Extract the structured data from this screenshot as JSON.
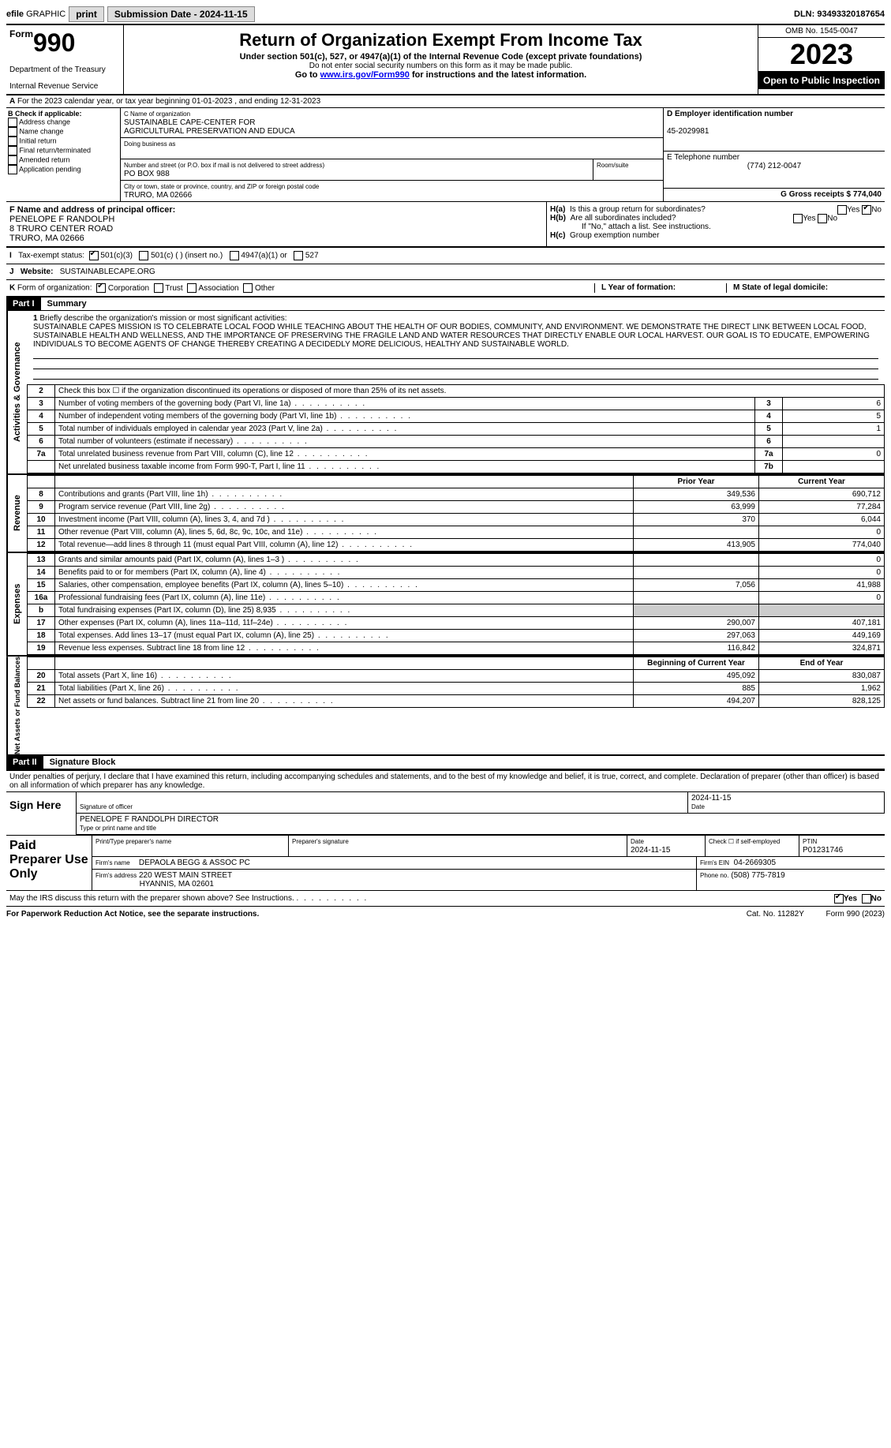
{
  "topbar": {
    "efile_prefix": "efile",
    "efile_suffix": "GRAPHIC",
    "print_btn": "print",
    "submission_label": "Submission Date - 2024-11-15",
    "dln": "DLN: 93493320187654"
  },
  "header": {
    "form_prefix": "Form",
    "form_num": "990",
    "dept1": "Department of the Treasury",
    "dept2": "Internal Revenue Service",
    "title": "Return of Organization Exempt From Income Tax",
    "sub1": "Under section 501(c), 527, or 4947(a)(1) of the Internal Revenue Code (except private foundations)",
    "sub2": "Do not enter social security numbers on this form as it may be made public.",
    "goto_prefix": "Go to ",
    "goto_link": "www.irs.gov/Form990",
    "goto_suffix": " for instructions and the latest information.",
    "omb": "OMB No. 1545-0047",
    "year": "2023",
    "open": "Open to Public Inspection"
  },
  "sec_a": "For the 2023 calendar year, or tax year beginning 01-01-2023   , and ending 12-31-2023",
  "col_b": {
    "title": "B Check if applicable:",
    "items": [
      "Address change",
      "Name change",
      "Initial return",
      "Final return/terminated",
      "Amended return",
      "Application pending"
    ]
  },
  "col_c": {
    "name_label": "C Name of organization",
    "name1": "SUSTAINABLE CAPE-CENTER FOR",
    "name2": "AGRICULTURAL PRESERVATION AND EDUCA",
    "dba_label": "Doing business as",
    "street_label": "Number and street (or P.O. box if mail is not delivered to street address)",
    "room_label": "Room/suite",
    "street": "PO BOX 988",
    "city_label": "City or town, state or province, country, and ZIP or foreign postal code",
    "city": "TRURO, MA  02666"
  },
  "col_d": {
    "ein_label": "D Employer identification number",
    "ein": "45-2029981",
    "phone_label": "E Telephone number",
    "phone": "(774) 212-0047",
    "gross_label": "G Gross receipts $ 774,040"
  },
  "block_f": {
    "f_label": "F Name and address of principal officer:",
    "name": "PENELOPE F RANDOLPH",
    "addr1": "8 TRURO CENTER ROAD",
    "addr2": "TRURO, MA  02666"
  },
  "block_h": {
    "ha_label": "H(a)",
    "ha_text": "Is this a group return for subordinates?",
    "hb_label": "H(b)",
    "hb_text": "Are all subordinates included?",
    "hb_note": "If \"No,\" attach a list. See instructions.",
    "hc_label": "H(c)",
    "hc_text": "Group exemption number",
    "yes": "Yes",
    "no": "No"
  },
  "row_i": {
    "label": "I",
    "text": "Tax-exempt status:",
    "opt1": "501(c)(3)",
    "opt2": "501(c) (  ) (insert no.)",
    "opt3": "4947(a)(1) or",
    "opt4": "527"
  },
  "row_j": {
    "label": "J",
    "text": "Website:",
    "val": "SUSTAINABLECAPE.ORG"
  },
  "row_k": {
    "label": "K",
    "text": "Form of organization:",
    "opts": [
      "Corporation",
      "Trust",
      "Association",
      "Other"
    ],
    "l_label": "L Year of formation:",
    "m_label": "M State of legal domicile:"
  },
  "part1": {
    "header": "Part I",
    "title": "Summary"
  },
  "sections": {
    "ag": "Activities & Governance",
    "rev": "Revenue",
    "exp": "Expenses",
    "na": "Net Assets or Fund Balances"
  },
  "mission": {
    "label": "1",
    "prompt": "Briefly describe the organization's mission or most significant activities:",
    "text": "SUSTAINABLE CAPES MISSION IS TO CELEBRATE LOCAL FOOD WHILE TEACHING ABOUT THE HEALTH OF OUR BODIES, COMMUNITY, AND ENVIRONMENT. WE DEMONSTRATE THE DIRECT LINK BETWEEN LOCAL FOOD, SUSTAINABLE HEALTH AND WELLNESS, AND THE IMPORTANCE OF PRESERVING THE FRAGILE LAND AND WATER RESOURCES THAT DIRECTLY ENABLE OUR LOCAL HARVEST. OUR GOAL IS TO EDUCATE, EMPOWERING INDIVIDUALS TO BECOME AGENTS OF CHANGE THEREBY CREATING A DECIDEDLY MORE DELICIOUS, HEALTHY AND SUSTAINABLE WORLD."
  },
  "lines_ag": [
    {
      "n": "2",
      "d": "Check this box ☐ if the organization discontinued its operations or disposed of more than 25% of its net assets.",
      "box": "",
      "v": ""
    },
    {
      "n": "3",
      "d": "Number of voting members of the governing body (Part VI, line 1a)",
      "box": "3",
      "v": "6"
    },
    {
      "n": "4",
      "d": "Number of independent voting members of the governing body (Part VI, line 1b)",
      "box": "4",
      "v": "5"
    },
    {
      "n": "5",
      "d": "Total number of individuals employed in calendar year 2023 (Part V, line 2a)",
      "box": "5",
      "v": "1"
    },
    {
      "n": "6",
      "d": "Total number of volunteers (estimate if necessary)",
      "box": "6",
      "v": ""
    },
    {
      "n": "7a",
      "d": "Total unrelated business revenue from Part VIII, column (C), line 12",
      "box": "7a",
      "v": "0"
    },
    {
      "n": "",
      "d": "Net unrelated business taxable income from Form 990-T, Part I, line 11",
      "box": "7b",
      "v": ""
    }
  ],
  "py_cy_header": {
    "py": "Prior Year",
    "cy": "Current Year"
  },
  "lines_rev": [
    {
      "n": "8",
      "d": "Contributions and grants (Part VIII, line 1h)",
      "py": "349,536",
      "cy": "690,712"
    },
    {
      "n": "9",
      "d": "Program service revenue (Part VIII, line 2g)",
      "py": "63,999",
      "cy": "77,284"
    },
    {
      "n": "10",
      "d": "Investment income (Part VIII, column (A), lines 3, 4, and 7d )",
      "py": "370",
      "cy": "6,044"
    },
    {
      "n": "11",
      "d": "Other revenue (Part VIII, column (A), lines 5, 6d, 8c, 9c, 10c, and 11e)",
      "py": "",
      "cy": "0"
    },
    {
      "n": "12",
      "d": "Total revenue—add lines 8 through 11 (must equal Part VIII, column (A), line 12)",
      "py": "413,905",
      "cy": "774,040"
    }
  ],
  "lines_exp": [
    {
      "n": "13",
      "d": "Grants and similar amounts paid (Part IX, column (A), lines 1–3 )",
      "py": "",
      "cy": "0"
    },
    {
      "n": "14",
      "d": "Benefits paid to or for members (Part IX, column (A), line 4)",
      "py": "",
      "cy": "0"
    },
    {
      "n": "15",
      "d": "Salaries, other compensation, employee benefits (Part IX, column (A), lines 5–10)",
      "py": "7,056",
      "cy": "41,988"
    },
    {
      "n": "16a",
      "d": "Professional fundraising fees (Part IX, column (A), line 11e)",
      "py": "",
      "cy": "0"
    },
    {
      "n": "b",
      "d": "Total fundraising expenses (Part IX, column (D), line 25) 8,935",
      "py": "grey",
      "cy": "grey"
    },
    {
      "n": "17",
      "d": "Other expenses (Part IX, column (A), lines 11a–11d, 11f–24e)",
      "py": "290,007",
      "cy": "407,181"
    },
    {
      "n": "18",
      "d": "Total expenses. Add lines 13–17 (must equal Part IX, column (A), line 25)",
      "py": "297,063",
      "cy": "449,169"
    },
    {
      "n": "19",
      "d": "Revenue less expenses. Subtract line 18 from line 12",
      "py": "116,842",
      "cy": "324,871"
    }
  ],
  "na_header": {
    "py": "Beginning of Current Year",
    "cy": "End of Year"
  },
  "lines_na": [
    {
      "n": "20",
      "d": "Total assets (Part X, line 16)",
      "py": "495,092",
      "cy": "830,087"
    },
    {
      "n": "21",
      "d": "Total liabilities (Part X, line 26)",
      "py": "885",
      "cy": "1,962"
    },
    {
      "n": "22",
      "d": "Net assets or fund balances. Subtract line 21 from line 20",
      "py": "494,207",
      "cy": "828,125"
    }
  ],
  "part2": {
    "header": "Part II",
    "title": "Signature Block",
    "declaration": "Under penalties of perjury, I declare that I have examined this return, including accompanying schedules and statements, and to the best of my knowledge and belief, it is true, correct, and complete. Declaration of preparer (other than officer) is based on all information of which preparer has any knowledge."
  },
  "sign": {
    "sign_here": "Sign Here",
    "sig_label": "Signature of officer",
    "date_label": "Date",
    "date": "2024-11-15",
    "officer": "PENELOPE F RANDOLPH  DIRECTOR",
    "type_label": "Type or print name and title"
  },
  "preparer": {
    "title": "Paid Preparer Use Only",
    "name_label": "Print/Type preparer's name",
    "sig_label": "Preparer's signature",
    "date_label": "Date",
    "date": "2024-11-15",
    "check_label": "Check ☐ if self-employed",
    "ptin_label": "PTIN",
    "ptin": "P01231746",
    "firm_name_label": "Firm's name",
    "firm_name": "DEPAOLA BEGG & ASSOC PC",
    "firm_ein_label": "Firm's EIN",
    "firm_ein": "04-2669305",
    "firm_addr_label": "Firm's address",
    "firm_addr1": "220 WEST MAIN STREET",
    "firm_addr2": "HYANNIS, MA  02601",
    "phone_label": "Phone no.",
    "phone": "(508) 775-7819"
  },
  "discuss": {
    "text": "May the IRS discuss this return with the preparer shown above? See Instructions.",
    "yes": "Yes",
    "no": "No"
  },
  "footer": {
    "left": "For Paperwork Reduction Act Notice, see the separate instructions.",
    "mid": "Cat. No. 11282Y",
    "right": "Form 990 (2023)"
  },
  "colors": {
    "black": "#000000",
    "grey_btn": "#dddddd",
    "grey_cell": "#cccccc",
    "link": "#0000ee"
  }
}
